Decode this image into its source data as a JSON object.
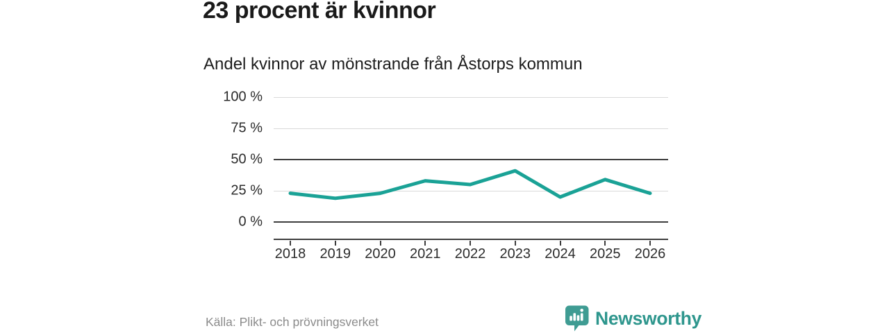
{
  "header": {
    "title": "23 procent är kvinnor",
    "subtitle": "Andel kvinnor av mönstrande från Åstorps kommun"
  },
  "chart_data": {
    "type": "line",
    "title": "23 procent är kvinnor",
    "subtitle": "Andel kvinnor av mönstrande från Åstorps kommun",
    "x": [
      "2018",
      "2019",
      "2020",
      "2021",
      "2022",
      "2023",
      "2024",
      "2025",
      "2026"
    ],
    "series": [
      {
        "name": "Andel kvinnor av mönstrande",
        "values": [
          23,
          19,
          23,
          33,
          30,
          41,
          20,
          34,
          23
        ]
      }
    ],
    "xlabel": "",
    "ylabel": "",
    "ylim": [
      0,
      100
    ],
    "y_ticks": [
      0,
      25,
      50,
      75,
      100
    ],
    "y_tick_labels": [
      "0 %",
      "25 %",
      "50 %",
      "75 %",
      "100 %"
    ],
    "emphasized_gridlines": [
      0,
      50
    ],
    "grid": "horizontal-only",
    "legend": "none",
    "line_color": "#1aa296"
  },
  "footer": {
    "source": "Källa: Plikt- och prövningsverket",
    "brand": "Newsworthy"
  },
  "logo": {
    "icon": "speech-bubble-bar-chart-icon",
    "label": "Newsworthy"
  },
  "colors": {
    "line": "#1aa296",
    "brand_teal": "#2e968d",
    "grid_light": "#d9d9d9",
    "grid_dark": "#3d3d3d",
    "text_dark": "#1a1a1a",
    "text_axis": "#2b2b2b",
    "text_source": "#8b8b8b",
    "background": "#ffffff"
  }
}
